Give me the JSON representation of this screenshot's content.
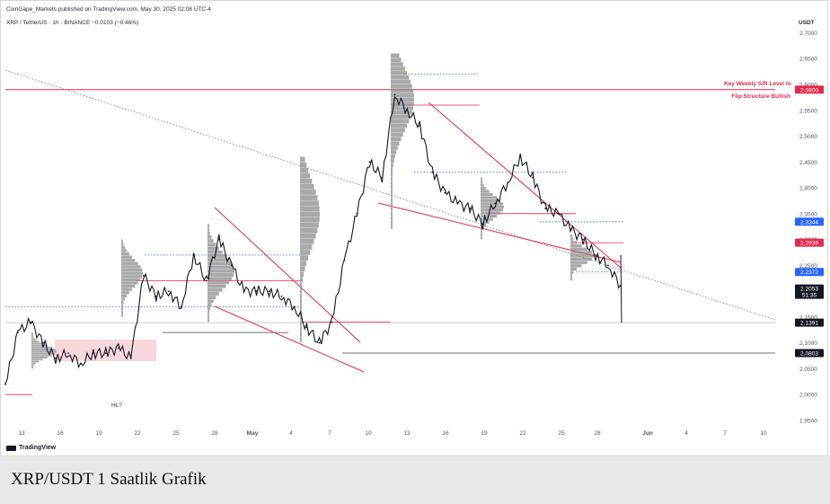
{
  "header": {
    "publisher": "CoinGape_Markets published on TradingView.com, May 30, 2025 02:08 UTC-4",
    "symbol": "XRP / TetherUS · 1h · BINANCE  −0.0103 (−0.46%)"
  },
  "axis": {
    "currency": "USDT",
    "price_labels": [
      "2.7000",
      "2.6500",
      "2.6000",
      "2.5500",
      "2.5000",
      "2.4500",
      "2.4000",
      "2.3500",
      "2.3000",
      "2.2500",
      "2.2000",
      "2.1500",
      "2.1000",
      "2.0500",
      "2.0000",
      "1.9500"
    ],
    "time_labels": [
      "13",
      "16",
      "19",
      "22",
      "25",
      "28",
      "May",
      "4",
      "7",
      "10",
      "13",
      "16",
      "19",
      "22",
      "25",
      "28",
      "Jun",
      "4",
      "7",
      "10"
    ]
  },
  "badges": {
    "level_red": "2.5900",
    "blue_upper": "2.3344",
    "red_current": "2.2939",
    "blue_lower": "2.2372",
    "price": "2.2053",
    "countdown": "51:35",
    "low_1": "2.1391",
    "low_2": "2.0803"
  },
  "annotations": {
    "key_level_line1": "Key Weekly S/R Level to",
    "key_level_line2": "Flip Structure Bullish",
    "hl": "HL?"
  },
  "footer": {
    "tradingview": "TradingView",
    "caption": "XRP/USDT 1 Saatlik Grafik"
  },
  "colors": {
    "red": "#e5294b",
    "blue": "#2962ff",
    "candle": "#131722",
    "volume_profile": "#8c8c8c",
    "pink_zone": "#f8d7dd"
  },
  "chart_data": {
    "type": "line",
    "title": "",
    "xlabel": "",
    "ylabel": "USDT",
    "ylim": [
      1.93,
      2.72
    ],
    "series": [
      {
        "x": [
          "Apr 11",
          "Apr 12",
          "Apr 13",
          "Apr 14",
          "Apr 15",
          "Apr 16",
          "Apr 17",
          "Apr 18",
          "Apr 19",
          "Apr 20",
          "Apr 21",
          "Apr 22",
          "Apr 23",
          "Apr 24",
          "Apr 25",
          "Apr 26",
          "Apr 27",
          "Apr 28",
          "Apr 29",
          "Apr 30",
          "May 1",
          "May 2",
          "May 3",
          "May 4",
          "May 5",
          "May 6",
          "May 7",
          "May 8",
          "May 9",
          "May 10",
          "May 11",
          "May 12",
          "May 13",
          "May 14",
          "May 15",
          "May 16",
          "May 17",
          "May 18",
          "May 19",
          "May 20",
          "May 21",
          "May 22",
          "May 23",
          "May 24",
          "May 25",
          "May 26",
          "May 27",
          "May 28",
          "May 29",
          "May 30"
        ],
        "values": [
          2.02,
          2.12,
          2.14,
          2.1,
          2.07,
          2.08,
          2.06,
          2.08,
          2.08,
          2.09,
          2.07,
          2.23,
          2.19,
          2.2,
          2.17,
          2.27,
          2.22,
          2.3,
          2.25,
          2.2,
          2.2,
          2.2,
          2.19,
          2.17,
          2.13,
          2.1,
          2.14,
          2.26,
          2.35,
          2.45,
          2.42,
          2.58,
          2.55,
          2.52,
          2.43,
          2.39,
          2.37,
          2.36,
          2.33,
          2.37,
          2.41,
          2.46,
          2.42,
          2.36,
          2.35,
          2.32,
          2.3,
          2.27,
          2.25,
          2.21
        ]
      }
    ],
    "levels": [
      2.59,
      2.3344,
      2.2939,
      2.2372,
      2.2053,
      2.1391,
      2.0803
    ]
  }
}
